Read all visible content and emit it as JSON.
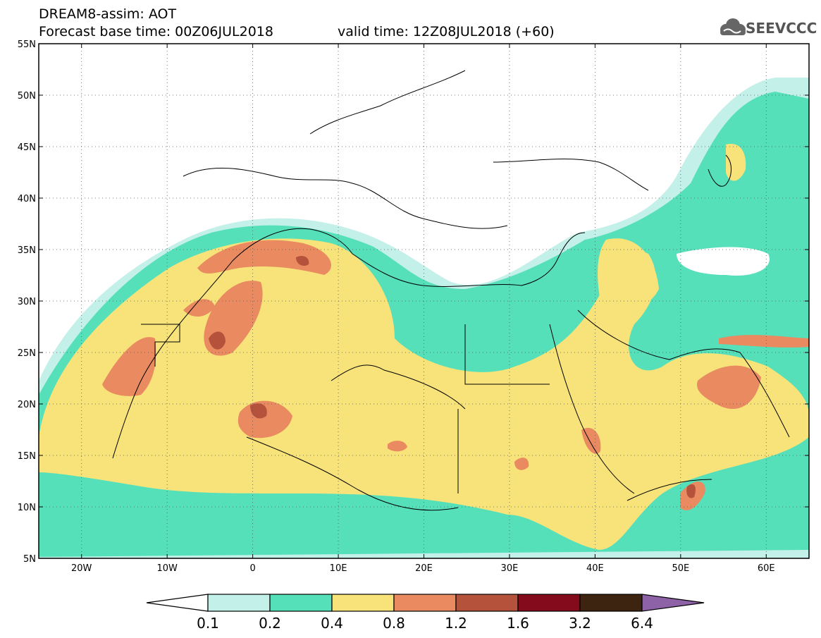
{
  "title": {
    "line1": "DREAM8-assim: AOT",
    "base_time": "Forecast base time: 00Z06JUL2018",
    "valid_time": "valid time: 12Z08JUL2018 (+60)"
  },
  "logo": {
    "text": "SEEVCCC",
    "icon": "cloud-logo-icon"
  },
  "map": {
    "lon_range": [
      -25,
      65
    ],
    "lat_range": [
      5,
      55
    ],
    "lat_ticks": [
      "5N",
      "10N",
      "15N",
      "20N",
      "25N",
      "30N",
      "35N",
      "40N",
      "45N",
      "50N",
      "55N"
    ],
    "lon_ticks": [
      "20W",
      "10W",
      "0",
      "10E",
      "20E",
      "30E",
      "40E",
      "50E",
      "60E"
    ],
    "grid": "dotted"
  },
  "colorbar": {
    "labels": [
      "0.1",
      "0.2",
      "0.4",
      "0.8",
      "1.2",
      "1.6",
      "3.2",
      "6.4"
    ],
    "colors": [
      "#c4f0ea",
      "#55e0ba",
      "#f7e37a",
      "#e98a60",
      "#b5523c",
      "#830b1c",
      "#3d2410",
      "#8d62a6"
    ]
  }
}
